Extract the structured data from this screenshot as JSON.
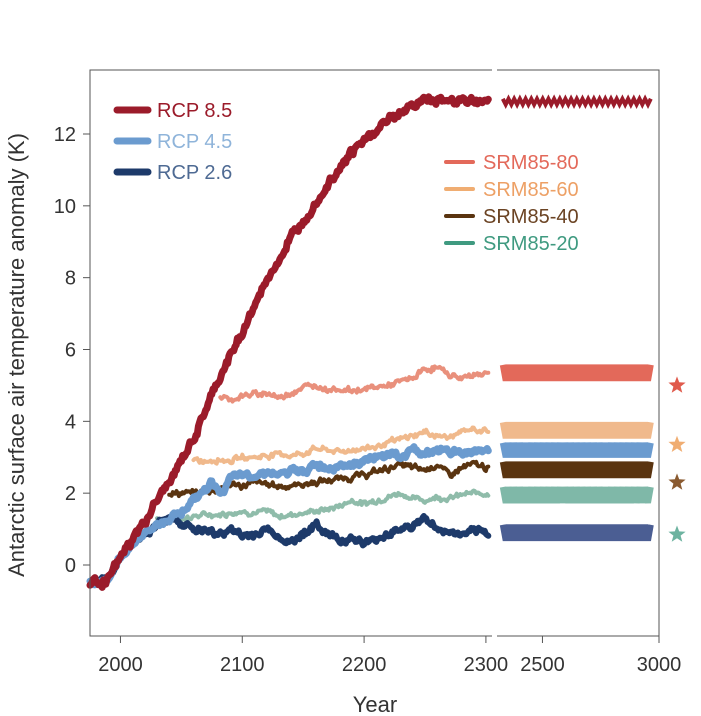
{
  "chart_data": {
    "type": "line",
    "ylabel": "Antarctic surface air temperature anomaly (K)",
    "xlabel": "Year",
    "ylim": [
      -2,
      13.8
    ],
    "yticks": [
      0,
      2,
      4,
      6,
      8,
      10,
      12
    ],
    "ytick_labels": [
      "0",
      "2",
      "4",
      "6",
      "8",
      "10",
      "12"
    ],
    "panel_main": {
      "xlim": [
        1975,
        2305
      ],
      "xticks": [
        2000,
        2100,
        2200,
        2300
      ],
      "xtick_labels": [
        "2000",
        "2100",
        "2200",
        "2300"
      ]
    },
    "panel_long": {
      "xlim": [
        2305,
        3000
      ],
      "xticks": [
        2500,
        3000
      ],
      "xtick_labels": [
        "2500",
        "3000"
      ],
      "band_start": 2330,
      "band_end": 2965,
      "star_x": 3020
    },
    "series": [
      {
        "name": "RCP 8.5",
        "color": "#9b1b2a",
        "width": 7,
        "noise": 0.09,
        "points": [
          [
            1975,
            -0.5
          ],
          [
            1990,
            -0.4
          ],
          [
            2000,
            0.2
          ],
          [
            2010,
            0.7
          ],
          [
            2020,
            1.2
          ],
          [
            2030,
            1.8
          ],
          [
            2040,
            2.3
          ],
          [
            2050,
            2.9
          ],
          [
            2060,
            3.5
          ],
          [
            2070,
            4.3
          ],
          [
            2080,
            5.1
          ],
          [
            2090,
            5.8
          ],
          [
            2100,
            6.5
          ],
          [
            2110,
            7.2
          ],
          [
            2120,
            7.9
          ],
          [
            2130,
            8.5
          ],
          [
            2140,
            9.1
          ],
          [
            2150,
            9.6
          ],
          [
            2160,
            10.1
          ],
          [
            2170,
            10.6
          ],
          [
            2180,
            11.1
          ],
          [
            2190,
            11.5
          ],
          [
            2200,
            11.8
          ],
          [
            2210,
            12.1
          ],
          [
            2220,
            12.4
          ],
          [
            2230,
            12.6
          ],
          [
            2240,
            12.8
          ],
          [
            2250,
            12.95
          ],
          [
            2260,
            12.95
          ],
          [
            2270,
            12.9
          ],
          [
            2280,
            13.0
          ],
          [
            2290,
            12.9
          ],
          [
            2302,
            12.9
          ]
        ],
        "long_value": 12.9,
        "long_amp": 0.08,
        "star_value": null
      },
      {
        "name": "RCP 4.5",
        "color": "#6b9bcf",
        "width": 7,
        "noise": 0.07,
        "points": [
          [
            1975,
            -0.5
          ],
          [
            1990,
            -0.4
          ],
          [
            2000,
            0.2
          ],
          [
            2010,
            0.6
          ],
          [
            2020,
            0.9
          ],
          [
            2030,
            1.1
          ],
          [
            2040,
            1.3
          ],
          [
            2050,
            1.5
          ],
          [
            2060,
            1.8
          ],
          [
            2070,
            2.1
          ],
          [
            2075,
            2.3
          ],
          [
            2085,
            2.0
          ],
          [
            2090,
            2.4
          ],
          [
            2100,
            2.5
          ],
          [
            2110,
            2.5
          ],
          [
            2120,
            2.6
          ],
          [
            2130,
            2.5
          ],
          [
            2140,
            2.6
          ],
          [
            2150,
            2.6
          ],
          [
            2160,
            2.8
          ],
          [
            2170,
            2.7
          ],
          [
            2180,
            2.8
          ],
          [
            2190,
            2.8
          ],
          [
            2200,
            2.9
          ],
          [
            2210,
            3.0
          ],
          [
            2220,
            3.1
          ],
          [
            2230,
            3.0
          ],
          [
            2240,
            3.2
          ],
          [
            2250,
            3.1
          ],
          [
            2260,
            3.2
          ],
          [
            2270,
            3.2
          ],
          [
            2280,
            3.1
          ],
          [
            2290,
            3.2
          ],
          [
            2302,
            3.2
          ]
        ],
        "long_value": 3.2,
        "long_amp": 0.2,
        "star_value": null
      },
      {
        "name": "RCP 2.6",
        "color": "#1d3a6a",
        "width": 6,
        "noise": 0.08,
        "points": [
          [
            1975,
            -0.5
          ],
          [
            1990,
            -0.4
          ],
          [
            2000,
            0.2
          ],
          [
            2010,
            0.6
          ],
          [
            2020,
            0.9
          ],
          [
            2030,
            1.1
          ],
          [
            2040,
            1.3
          ],
          [
            2050,
            1.2
          ],
          [
            2060,
            1.0
          ],
          [
            2070,
            0.95
          ],
          [
            2080,
            0.85
          ],
          [
            2090,
            1.0
          ],
          [
            2100,
            0.8
          ],
          [
            2110,
            0.85
          ],
          [
            2120,
            1.0
          ],
          [
            2130,
            0.8
          ],
          [
            2140,
            0.6
          ],
          [
            2150,
            0.9
          ],
          [
            2160,
            1.1
          ],
          [
            2170,
            0.9
          ],
          [
            2180,
            0.7
          ],
          [
            2190,
            0.75
          ],
          [
            2200,
            0.6
          ],
          [
            2210,
            0.7
          ],
          [
            2220,
            0.9
          ],
          [
            2230,
            1.0
          ],
          [
            2240,
            1.1
          ],
          [
            2250,
            1.3
          ],
          [
            2260,
            1.0
          ],
          [
            2270,
            0.9
          ],
          [
            2280,
            0.85
          ],
          [
            2290,
            0.9
          ],
          [
            2302,
            0.9
          ]
        ],
        "long_value": 0.9,
        "long_amp": 0.22,
        "star_value": null
      },
      {
        "name": "SRM85-80",
        "color": "#e9907c",
        "width": 4,
        "noise": 0.06,
        "points": [
          [
            2082,
            4.7
          ],
          [
            2090,
            4.6
          ],
          [
            2100,
            4.7
          ],
          [
            2110,
            4.75
          ],
          [
            2120,
            4.8
          ],
          [
            2130,
            4.65
          ],
          [
            2140,
            4.8
          ],
          [
            2150,
            4.95
          ],
          [
            2160,
            5.0
          ],
          [
            2170,
            4.9
          ],
          [
            2180,
            4.9
          ],
          [
            2190,
            4.85
          ],
          [
            2200,
            4.9
          ],
          [
            2210,
            4.95
          ],
          [
            2220,
            5.0
          ],
          [
            2230,
            5.1
          ],
          [
            2240,
            5.2
          ],
          [
            2250,
            5.45
          ],
          [
            2260,
            5.5
          ],
          [
            2270,
            5.3
          ],
          [
            2280,
            5.2
          ],
          [
            2290,
            5.3
          ],
          [
            2302,
            5.35
          ]
        ],
        "long_value": 5.35,
        "long_amp": 0.22,
        "star_color": "#e05a4c",
        "star_value": 5.0
      },
      {
        "name": "SRM85-60",
        "color": "#f0b98c",
        "width": 4,
        "noise": 0.06,
        "points": [
          [
            2060,
            2.9
          ],
          [
            2070,
            2.9
          ],
          [
            2080,
            2.95
          ],
          [
            2090,
            2.9
          ],
          [
            2100,
            3.0
          ],
          [
            2110,
            3.0
          ],
          [
            2120,
            3.05
          ],
          [
            2130,
            3.1
          ],
          [
            2140,
            3.05
          ],
          [
            2150,
            3.1
          ],
          [
            2160,
            3.25
          ],
          [
            2170,
            3.2
          ],
          [
            2180,
            3.15
          ],
          [
            2190,
            3.2
          ],
          [
            2200,
            3.25
          ],
          [
            2210,
            3.3
          ],
          [
            2220,
            3.4
          ],
          [
            2230,
            3.5
          ],
          [
            2240,
            3.6
          ],
          [
            2250,
            3.7
          ],
          [
            2260,
            3.6
          ],
          [
            2270,
            3.55
          ],
          [
            2280,
            3.7
          ],
          [
            2290,
            3.8
          ],
          [
            2302,
            3.7
          ]
        ],
        "long_value": 3.75,
        "long_amp": 0.22,
        "star_color": "#f0ad72",
        "star_value": 3.35
      },
      {
        "name": "SRM85-40",
        "color": "#5a3410",
        "width": 4,
        "noise": 0.07,
        "points": [
          [
            2040,
            2.0
          ],
          [
            2050,
            2.0
          ],
          [
            2060,
            2.0
          ],
          [
            2070,
            2.05
          ],
          [
            2080,
            2.1
          ],
          [
            2090,
            2.25
          ],
          [
            2100,
            2.2
          ],
          [
            2110,
            2.3
          ],
          [
            2120,
            2.25
          ],
          [
            2130,
            2.2
          ],
          [
            2140,
            2.2
          ],
          [
            2150,
            2.25
          ],
          [
            2160,
            2.3
          ],
          [
            2170,
            2.35
          ],
          [
            2180,
            2.4
          ],
          [
            2190,
            2.45
          ],
          [
            2200,
            2.5
          ],
          [
            2210,
            2.6
          ],
          [
            2220,
            2.7
          ],
          [
            2230,
            2.8
          ],
          [
            2240,
            2.7
          ],
          [
            2250,
            2.65
          ],
          [
            2260,
            2.8
          ],
          [
            2270,
            2.5
          ],
          [
            2280,
            2.7
          ],
          [
            2290,
            2.8
          ],
          [
            2302,
            2.7
          ]
        ],
        "long_value": 2.65,
        "long_amp": 0.22,
        "star_color": "#8a5a30",
        "star_value": 2.3
      },
      {
        "name": "SRM85-20",
        "color": "#8fbcaa",
        "width": 4,
        "noise": 0.06,
        "points": [
          [
            2030,
            1.3
          ],
          [
            2040,
            1.25
          ],
          [
            2050,
            1.3
          ],
          [
            2060,
            1.35
          ],
          [
            2070,
            1.4
          ],
          [
            2080,
            1.4
          ],
          [
            2090,
            1.45
          ],
          [
            2100,
            1.5
          ],
          [
            2110,
            1.45
          ],
          [
            2120,
            1.5
          ],
          [
            2130,
            1.35
          ],
          [
            2140,
            1.4
          ],
          [
            2150,
            1.45
          ],
          [
            2160,
            1.5
          ],
          [
            2170,
            1.55
          ],
          [
            2180,
            1.65
          ],
          [
            2190,
            1.8
          ],
          [
            2200,
            1.7
          ],
          [
            2210,
            1.8
          ],
          [
            2220,
            1.9
          ],
          [
            2230,
            2.0
          ],
          [
            2240,
            1.85
          ],
          [
            2250,
            1.8
          ],
          [
            2260,
            1.9
          ],
          [
            2270,
            1.85
          ],
          [
            2280,
            1.95
          ],
          [
            2290,
            2.0
          ],
          [
            2302,
            2.0
          ]
        ],
        "long_value": 1.95,
        "long_amp": 0.22,
        "star_color": "#6db3a0",
        "star_value": 0.85
      }
    ],
    "long_extra": [
      {
        "name": "RCP 2.6 long",
        "color": "#4b5e93",
        "value": 0.9
      }
    ],
    "legend_left": [
      {
        "label": "RCP 8.5",
        "color": "#9b1b2a",
        "text_color": "#9b1b2a"
      },
      {
        "label": "RCP 4.5",
        "color": "#6b9bcf",
        "text_color": "#8fb4da"
      },
      {
        "label": "RCP 2.6",
        "color": "#1d3a6a",
        "text_color": "#4e6a93"
      }
    ],
    "legend_right": [
      {
        "label": "SRM85-80",
        "color": "#e3695a",
        "text_color": "#e3695a"
      },
      {
        "label": "SRM85-60",
        "color": "#f0ad72",
        "text_color": "#eda065"
      },
      {
        "label": "SRM85-40",
        "color": "#5a3410",
        "text_color": "#6b4323"
      },
      {
        "label": "SRM85-20",
        "color": "#3f9a80",
        "text_color": "#3f9a80"
      }
    ]
  }
}
